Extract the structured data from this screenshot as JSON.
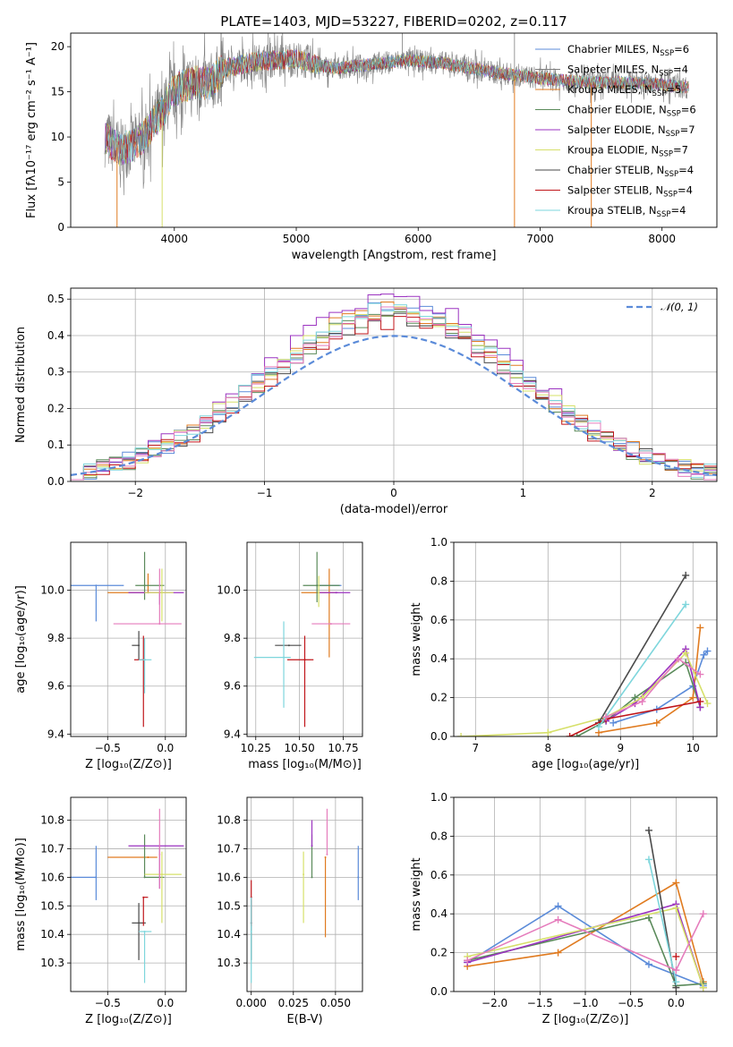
{
  "figure": {
    "title": "PLATE=1403, MJD=53227, FIBERID=0202, z=0.117"
  },
  "colors": {
    "series": [
      "#5b8bd9",
      "#e07b20",
      "#5a8a5a",
      "#9b33c0",
      "#d6e06a",
      "#4a4a4a",
      "#c0151a",
      "#7ed6dc",
      "#e57cbc"
    ]
  },
  "chart_data": [
    {
      "id": "spectrum",
      "type": "line",
      "title": "PLATE=1403, MJD=53227, FIBERID=0202, z=0.117",
      "xlabel": "wavelength [Angstrom, rest frame]",
      "ylabel": "Flux [fλ10⁻¹⁷ erg cm⁻² s⁻¹ A⁻¹]",
      "xlim": [
        3150,
        8450
      ],
      "ylim": [
        0,
        21.5
      ],
      "xticks": [
        4000,
        5000,
        6000,
        7000,
        8000
      ],
      "yticks": [
        0,
        5,
        10,
        15,
        20
      ],
      "grid": false,
      "legend_position": "top-right",
      "observed_color": "#7f7f7f",
      "continuum": [
        [
          3430,
          10
        ],
        [
          3470,
          9.5
        ],
        [
          3550,
          8.6
        ],
        [
          3650,
          9
        ],
        [
          3750,
          10
        ],
        [
          3850,
          12
        ],
        [
          3920,
          13
        ],
        [
          3970,
          14.8
        ],
        [
          4050,
          15.5
        ],
        [
          4150,
          16
        ],
        [
          4300,
          16
        ],
        [
          4400,
          17.5
        ],
        [
          4600,
          18.2
        ],
        [
          4800,
          18.5
        ],
        [
          5000,
          18.6
        ],
        [
          5300,
          17.6
        ],
        [
          5600,
          18
        ],
        [
          5900,
          18.5
        ],
        [
          6200,
          18.2
        ],
        [
          6600,
          17.2
        ],
        [
          7000,
          16.5
        ],
        [
          7400,
          16
        ],
        [
          7800,
          16
        ],
        [
          8220,
          15.5
        ]
      ],
      "model_spikes": [
        3530,
        3900,
        6790,
        7420
      ],
      "series": [
        {
          "name": "Chabrier MILES, N_SSP=6"
        },
        {
          "name": "Salpeter MILES, N_SSP=4"
        },
        {
          "name": "Kroupa MILES, N_SSP=5"
        },
        {
          "name": "Chabrier ELODIE, N_SSP=6"
        },
        {
          "name": "Salpeter ELODIE, N_SSP=7"
        },
        {
          "name": "Kroupa ELODIE, N_SSP=7"
        },
        {
          "name": "Chabrier STELIB, N_SSP=4"
        },
        {
          "name": "Salpeter STELIB, N_SSP=4"
        },
        {
          "name": "Kroupa STELIB, N_SSP=4"
        }
      ],
      "legend_labels": [
        {
          "pre": "Chabrier MILES, N",
          "post": "=6"
        },
        {
          "pre": "Salpeter MILES, N",
          "post": "=4"
        },
        {
          "pre": "Kroupa MILES, N",
          "post": "=5"
        },
        {
          "pre": "Chabrier ELODIE, N",
          "post": "=6"
        },
        {
          "pre": "Salpeter ELODIE, N",
          "post": "=7"
        },
        {
          "pre": "Kroupa ELODIE, N",
          "post": "=7"
        },
        {
          "pre": "Chabrier STELIB, N",
          "post": "=4"
        },
        {
          "pre": "Salpeter STELIB, N",
          "post": "=4"
        },
        {
          "pre": "Kroupa STELIB, N",
          "post": "=4"
        }
      ],
      "legend_colors": [
        "#5b8bd9",
        "#7f7f7f",
        "#e07b20",
        "#5a8a5a",
        "#9b33c0",
        "#d6e06a",
        "#4a4a4a",
        "#c0151a",
        "#7ed6dc"
      ]
    },
    {
      "id": "residuals",
      "type": "line",
      "xlabel": "(data-model)/error",
      "ylabel": "Normed distribution",
      "xlim": [
        -2.5,
        2.5
      ],
      "ylim": [
        0,
        0.53
      ],
      "xticks": [
        -2,
        -1,
        0,
        1,
        2
      ],
      "yticks": [
        0.0,
        0.1,
        0.2,
        0.3,
        0.4,
        0.5
      ],
      "grid": true,
      "legend_position": "top-right",
      "legend_label": "𝒩(0, 1)",
      "gaussian": {
        "mean": 0,
        "sigma": 1,
        "color": "#5b8bd9"
      },
      "histogram_bin_width": 0.1,
      "histogram_peaks": [
        0.47,
        0.47,
        0.46,
        0.5,
        0.47,
        0.45,
        0.44,
        0.47,
        0.46
      ]
    },
    {
      "id": "age-vs-Z",
      "type": "scatter",
      "xlabel": "Z [log₁₀(Z/Z⊙)]",
      "ylabel": "age  [log₁₀(age/yr)]",
      "xlim": [
        -0.82,
        0.18
      ],
      "ylim": [
        9.39,
        10.2
      ],
      "xticks": [
        -0.5,
        0.0
      ],
      "yticks": [
        9.4,
        9.6,
        9.8,
        10.0
      ],
      "grid": true,
      "points": [
        {
          "x": -0.6,
          "y": 10.02,
          "xerr": [
            0.28,
            0.24
          ],
          "yerr": [
            0.15,
            0.0
          ]
        },
        {
          "x": -0.15,
          "y": 9.99,
          "xerr": [
            0.35,
            0.12
          ],
          "yerr": [
            0.0,
            0.08
          ]
        },
        {
          "x": -0.18,
          "y": 10.02,
          "xerr": [
            0.08,
            0.17
          ],
          "yerr": [
            0.06,
            0.14
          ]
        },
        {
          "x": -0.05,
          "y": 9.99,
          "xerr": [
            0.27,
            0.21
          ],
          "yerr": [
            0.05,
            0.0
          ]
        },
        {
          "x": -0.03,
          "y": 9.99,
          "xerr": [
            0.15,
            0.1
          ],
          "yerr": [
            0.12,
            0.1
          ]
        },
        {
          "x": -0.23,
          "y": 9.77,
          "xerr": [
            0.06,
            0.0
          ],
          "yerr": [
            0.06,
            0.06
          ]
        },
        {
          "x": -0.19,
          "y": 9.71,
          "xerr": [
            0.08,
            0.02
          ],
          "yerr": [
            0.28,
            0.1
          ]
        },
        {
          "x": -0.18,
          "y": 9.71,
          "xerr": [
            0.05,
            0.06
          ],
          "yerr": [
            0.14,
            0.09
          ]
        },
        {
          "x": -0.05,
          "y": 9.86,
          "xerr": [
            0.4,
            0.19
          ],
          "yerr": [
            0.0,
            0.23
          ]
        }
      ]
    },
    {
      "id": "age-vs-mass",
      "type": "scatter",
      "xlabel": "mass [log₁₀(M/M⊙)]",
      "ylabel": "",
      "xlim": [
        10.2,
        10.86
      ],
      "ylim": [
        9.39,
        10.2
      ],
      "xticks": [
        10.25,
        10.5,
        10.75
      ],
      "yticks": [
        9.4,
        9.6,
        9.8,
        10.0
      ],
      "grid": true,
      "points": [
        {
          "x": 10.6,
          "y": 10.02,
          "xerr": [
            0.0,
            0.14
          ],
          "yerr": [
            0.0,
            0.0
          ]
        },
        {
          "x": 10.67,
          "y": 9.99,
          "xerr": [
            0.16,
            0.05
          ],
          "yerr": [
            0.27,
            0.1
          ]
        },
        {
          "x": 10.6,
          "y": 10.02,
          "xerr": [
            0.08,
            0.13
          ],
          "yerr": [
            0.07,
            0.14
          ]
        },
        {
          "x": 10.71,
          "y": 9.99,
          "xerr": [
            0.1,
            0.08
          ],
          "yerr": [
            0.0,
            0.0
          ]
        },
        {
          "x": 10.61,
          "y": 9.99,
          "xerr": [
            0.0,
            0.0
          ],
          "yerr": [
            0.06,
            0.07
          ]
        },
        {
          "x": 10.44,
          "y": 9.77,
          "xerr": [
            0.08,
            0.07
          ],
          "yerr": [
            0.0,
            0.0
          ]
        },
        {
          "x": 10.53,
          "y": 9.71,
          "xerr": [
            0.1,
            0.05
          ],
          "yerr": [
            0.28,
            0.1
          ]
        },
        {
          "x": 10.41,
          "y": 9.72,
          "xerr": [
            0.17,
            0.04
          ],
          "yerr": [
            0.21,
            0.15
          ]
        },
        {
          "x": 10.68,
          "y": 9.86,
          "xerr": [
            0.11,
            0.11
          ],
          "yerr": [
            0.0,
            0.0
          ]
        }
      ]
    },
    {
      "id": "massweight-vs-age",
      "type": "line",
      "xlabel": "age  [log₁₀(age/yr)]",
      "ylabel": "mass weight",
      "xlim": [
        6.7,
        10.33
      ],
      "ylim": [
        0,
        1.0
      ],
      "xticks": [
        7,
        8,
        9,
        10
      ],
      "yticks": [
        0.0,
        0.2,
        0.4,
        0.6,
        0.8,
        1.0
      ],
      "grid": true,
      "series": [
        {
          "x": [
            8.9,
            9.5,
            10.0,
            10.15,
            10.2
          ],
          "values": [
            0.07,
            0.14,
            0.26,
            0.42,
            0.44
          ]
        },
        {
          "x": [
            8.7,
            9.5,
            10.0,
            10.1
          ],
          "values": [
            0.02,
            0.07,
            0.2,
            0.56
          ]
        },
        {
          "x": [
            8.4,
            8.8,
            9.2,
            9.9,
            10.1
          ],
          "values": [
            0.0,
            0.08,
            0.2,
            0.38,
            0.15
          ]
        },
        {
          "x": [
            8.8,
            9.2,
            9.9,
            10.1
          ],
          "values": [
            0.08,
            0.17,
            0.45,
            0.15
          ]
        },
        {
          "x": [
            6.8,
            8.0,
            8.8,
            9.3,
            9.9,
            10.2
          ],
          "values": [
            0.0,
            0.02,
            0.1,
            0.2,
            0.43,
            0.17
          ]
        },
        {
          "x": [
            8.7,
            9.9
          ],
          "values": [
            0.07,
            0.83
          ]
        },
        {
          "x": [
            8.3,
            8.8,
            10.1
          ],
          "values": [
            0.0,
            0.09,
            0.18
          ]
        },
        {
          "x": [
            8.7,
            9.9
          ],
          "values": [
            0.05,
            0.68
          ]
        },
        {
          "x": [
            8.8,
            9.3,
            9.8,
            10.1
          ],
          "values": [
            0.1,
            0.18,
            0.4,
            0.32
          ]
        }
      ]
    },
    {
      "id": "mass-vs-Z",
      "type": "scatter",
      "xlabel": "Z [log₁₀(Z/Z⊙)]",
      "ylabel": "mass [log₁₀(M/M⊙)]",
      "xlim": [
        -0.82,
        0.18
      ],
      "ylim": [
        10.2,
        10.88
      ],
      "xticks": [
        -0.5,
        0.0
      ],
      "yticks": [
        10.3,
        10.4,
        10.5,
        10.6,
        10.7,
        10.8
      ],
      "grid": true,
      "points": [
        {
          "x": -0.6,
          "y": 10.6,
          "xerr": [
            0.28,
            0.0
          ],
          "yerr": [
            0.08,
            0.11
          ]
        },
        {
          "x": -0.15,
          "y": 10.67,
          "xerr": [
            0.35,
            0.08
          ],
          "yerr": [
            0.0,
            0.0
          ]
        },
        {
          "x": -0.18,
          "y": 10.6,
          "xerr": [
            0.0,
            0.17
          ],
          "yerr": [
            0.0,
            0.15
          ]
        },
        {
          "x": -0.05,
          "y": 10.71,
          "xerr": [
            0.27,
            0.21
          ],
          "yerr": [
            0.15,
            0.0
          ]
        },
        {
          "x": -0.03,
          "y": 10.61,
          "xerr": [
            0.15,
            0.17
          ],
          "yerr": [
            0.17,
            0.08
          ]
        },
        {
          "x": -0.23,
          "y": 10.44,
          "xerr": [
            0.06,
            0.06
          ],
          "yerr": [
            0.13,
            0.07
          ]
        },
        {
          "x": -0.19,
          "y": 10.53,
          "xerr": [
            0.0,
            0.04
          ],
          "yerr": [
            0.1,
            0.0
          ]
        },
        {
          "x": -0.18,
          "y": 10.41,
          "xerr": [
            0.05,
            0.06
          ],
          "yerr": [
            0.18,
            0.0
          ]
        },
        {
          "x": -0.05,
          "y": 10.68,
          "xerr": [
            0.0,
            0.0
          ],
          "yerr": [
            0.12,
            0.16
          ]
        }
      ]
    },
    {
      "id": "mass-vs-EBV",
      "type": "scatter",
      "xlabel": "E(B-V)",
      "ylabel": "",
      "xlim": [
        -0.0025,
        0.066
      ],
      "ylim": [
        10.2,
        10.88
      ],
      "xticks": [
        0.0,
        0.025,
        0.05
      ],
      "tick_labels": [
        "0.000",
        "0.025",
        "0.050"
      ],
      "yticks": [
        10.3,
        10.4,
        10.5,
        10.6,
        10.7,
        10.8
      ],
      "grid": true,
      "points": [
        {
          "x": 0.0635,
          "y": 10.6,
          "yerr": [
            0.08,
            0.11
          ]
        },
        {
          "x": 0.044,
          "y": 10.67,
          "yerr": [
            0.28,
            0.0
          ]
        },
        {
          "x": 0.036,
          "y": 10.6,
          "yerr": [
            0.0,
            0.15
          ]
        },
        {
          "x": 0.036,
          "y": 10.71,
          "yerr": [
            0.0,
            0.09
          ]
        },
        {
          "x": 0.031,
          "y": 10.61,
          "yerr": [
            0.17,
            0.08
          ]
        },
        {
          "x": 0.0,
          "y": 10.44,
          "yerr": [
            0.13,
            0.08
          ]
        },
        {
          "x": 0.0,
          "y": 10.53,
          "yerr": [
            0.1,
            0.06
          ]
        },
        {
          "x": 0.0,
          "y": 10.41,
          "yerr": [
            0.18,
            0.12
          ]
        },
        {
          "x": 0.045,
          "y": 10.68,
          "yerr": [
            0.0,
            0.16
          ]
        }
      ]
    },
    {
      "id": "massweight-vs-Z",
      "type": "line",
      "xlabel": "Z [log₁₀(Z/Z⊙)]",
      "ylabel": "mass weight",
      "xlim": [
        -2.45,
        0.45
      ],
      "ylim": [
        0,
        1.0
      ],
      "xticks": [
        -2.0,
        -1.5,
        -1.0,
        -0.5,
        0.0
      ],
      "yticks": [
        0.0,
        0.2,
        0.4,
        0.6,
        0.8,
        1.0
      ],
      "grid": true,
      "series": [
        {
          "x": [
            -2.3,
            -1.3,
            -0.3,
            0.3
          ],
          "values": [
            0.15,
            0.44,
            0.14,
            0.03
          ]
        },
        {
          "x": [
            -2.3,
            -1.3,
            0.0,
            0.3
          ],
          "values": [
            0.13,
            0.2,
            0.56,
            0.05
          ]
        },
        {
          "x": [
            -2.3,
            -0.3,
            0.0,
            0.3
          ],
          "values": [
            0.16,
            0.38,
            0.03,
            0.04
          ]
        },
        {
          "x": [
            -2.3,
            0.0,
            0.3
          ],
          "values": [
            0.15,
            0.45,
            0.02
          ]
        },
        {
          "x": [
            -2.3,
            0.0,
            0.3
          ],
          "values": [
            0.18,
            0.43,
            0.02
          ]
        },
        {
          "x": [
            -0.3,
            0.0
          ],
          "values": [
            0.83,
            0.02
          ]
        },
        {
          "x": [
            0.0
          ],
          "values": [
            0.18
          ]
        },
        {
          "x": [
            -0.3,
            0.0
          ],
          "values": [
            0.68,
            0.05
          ]
        },
        {
          "x": [
            -2.3,
            -1.3,
            0.0,
            0.3
          ],
          "values": [
            0.16,
            0.37,
            0.11,
            0.4
          ]
        }
      ]
    }
  ]
}
